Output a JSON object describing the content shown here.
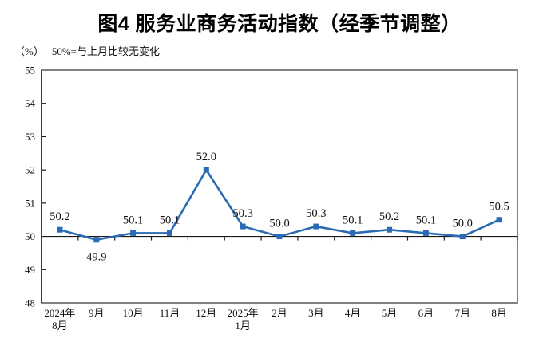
{
  "title": "图4 服务业商务活动指数（经季节调整）",
  "unit_label": "（%）",
  "note": "50%=与上月比较无变化",
  "colors": {
    "line": "#2A6BB4",
    "marker": "#2A6BB4",
    "frame": "#595959",
    "axis": "#1a1a1a",
    "text": "#111111"
  },
  "chart_data": {
    "type": "line",
    "title": "图4 服务业商务活动指数（经季节调整）",
    "ylabel": "（%）",
    "note": "50%=与上月比较无变化",
    "categories": [
      "2024年\n8月",
      "9月",
      "10月",
      "11月",
      "12月",
      "2025年\n1月",
      "2月",
      "3月",
      "4月",
      "5月",
      "6月",
      "7月",
      "8月"
    ],
    "values": [
      50.2,
      49.9,
      50.1,
      50.1,
      52.0,
      50.3,
      50.0,
      50.3,
      50.1,
      50.2,
      50.1,
      50.0,
      50.5
    ],
    "ylim": [
      48,
      55
    ],
    "ytick_step": 1,
    "axis_cross": 50,
    "grid": false,
    "legend_position": "none",
    "label_below_indices": [
      1
    ],
    "marker": "square"
  }
}
